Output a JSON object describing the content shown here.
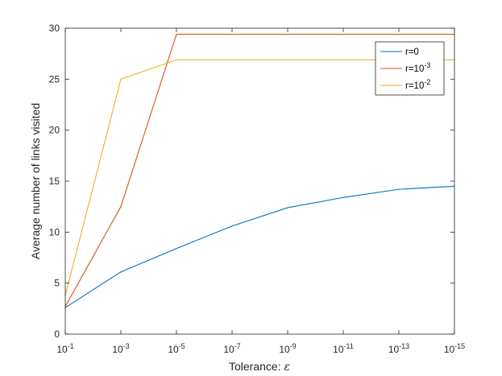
{
  "chart_data": {
    "type": "line",
    "title": "",
    "xlabel": "Tolerance: ",
    "xlabel_symbol": "ε",
    "ylabel": "Average number of links visited",
    "x_ticks": [
      {
        "base": "10",
        "exp": "-1"
      },
      {
        "base": "10",
        "exp": "-3"
      },
      {
        "base": "10",
        "exp": "-5"
      },
      {
        "base": "10",
        "exp": "-7"
      },
      {
        "base": "10",
        "exp": "-9"
      },
      {
        "base": "10",
        "exp": "-11"
      },
      {
        "base": "10",
        "exp": "-13"
      },
      {
        "base": "10",
        "exp": "-15"
      }
    ],
    "x_tick_values": [
      0.1,
      0.001,
      1e-05,
      1e-07,
      1e-09,
      1e-11,
      1e-13,
      1e-15
    ],
    "y_ticks": [
      "0",
      "5",
      "10",
      "15",
      "20",
      "25",
      "30"
    ],
    "y_tick_values": [
      0,
      5,
      10,
      15,
      20,
      25,
      30
    ],
    "xlim": [
      0.1,
      1e-15
    ],
    "ylim": [
      0,
      30
    ],
    "x_scale": "log",
    "x_reversed": true,
    "grid": false,
    "legend_position": "top-right",
    "x": [
      0.1,
      0.001,
      1e-05,
      1e-07,
      1e-09,
      1e-11,
      1e-13,
      1e-15
    ],
    "series": [
      {
        "name": "r=0",
        "legend": {
          "base": "r=0",
          "exp": ""
        },
        "color": "#0072BD",
        "values": [
          2.6,
          6.1,
          8.4,
          10.6,
          12.4,
          13.4,
          14.2,
          14.5
        ]
      },
      {
        "name": "r=10^-3",
        "legend": {
          "base": "r=10",
          "exp": "-3"
        },
        "color": "#D95319",
        "values": [
          2.7,
          12.5,
          29.4,
          29.4,
          29.4,
          29.4,
          29.4,
          29.4
        ]
      },
      {
        "name": "r=10^-2",
        "legend": {
          "base": "r=10",
          "exp": "-2"
        },
        "color": "#EDB120",
        "values": [
          3.8,
          25.0,
          26.9,
          26.9,
          26.9,
          26.9,
          26.9,
          26.9
        ]
      }
    ]
  }
}
